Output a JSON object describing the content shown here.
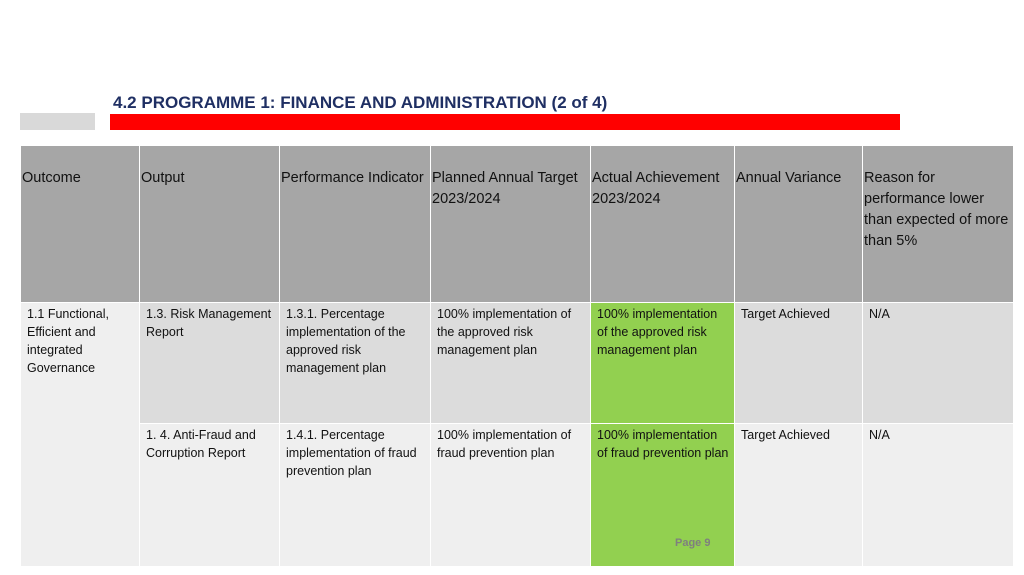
{
  "page": {
    "title": "4.2 PROGRAMME 1: FINANCE AND ADMINISTRATION (2 of 4)",
    "page_label": "Page 9"
  },
  "colors": {
    "title": "#1f2f63",
    "red_bar": "#ff0000",
    "header_bg": "#a6a6a6",
    "achieved": "#92d050"
  },
  "table": {
    "headers": [
      "Outcome",
      "Output",
      "Performance Indicator",
      "Planned Annual Target 2023/2024",
      "Actual Achievement 2023/2024",
      "Annual Variance",
      "Reason for performance lower than expected of more than 5%"
    ],
    "outcome": "1.1 Functional, Efficient and integrated Governance",
    "rows": [
      {
        "output": "1.3. Risk Management Report",
        "indicator": "1.3.1. Percentage implementation of the approved risk management plan",
        "target": "100% implementation of the approved risk management plan",
        "actual": "100% implementation of the approved risk management plan",
        "variance": "Target Achieved",
        "reason": "N/A"
      },
      {
        "output": "1. 4. Anti-Fraud and Corruption Report",
        "indicator": "1.4.1. Percentage implementation of fraud prevention plan",
        "target": "100% implementation of fraud prevention plan",
        "actual": "100% implementation of fraud prevention plan",
        "variance": "Target Achieved",
        "reason": "N/A"
      }
    ]
  }
}
